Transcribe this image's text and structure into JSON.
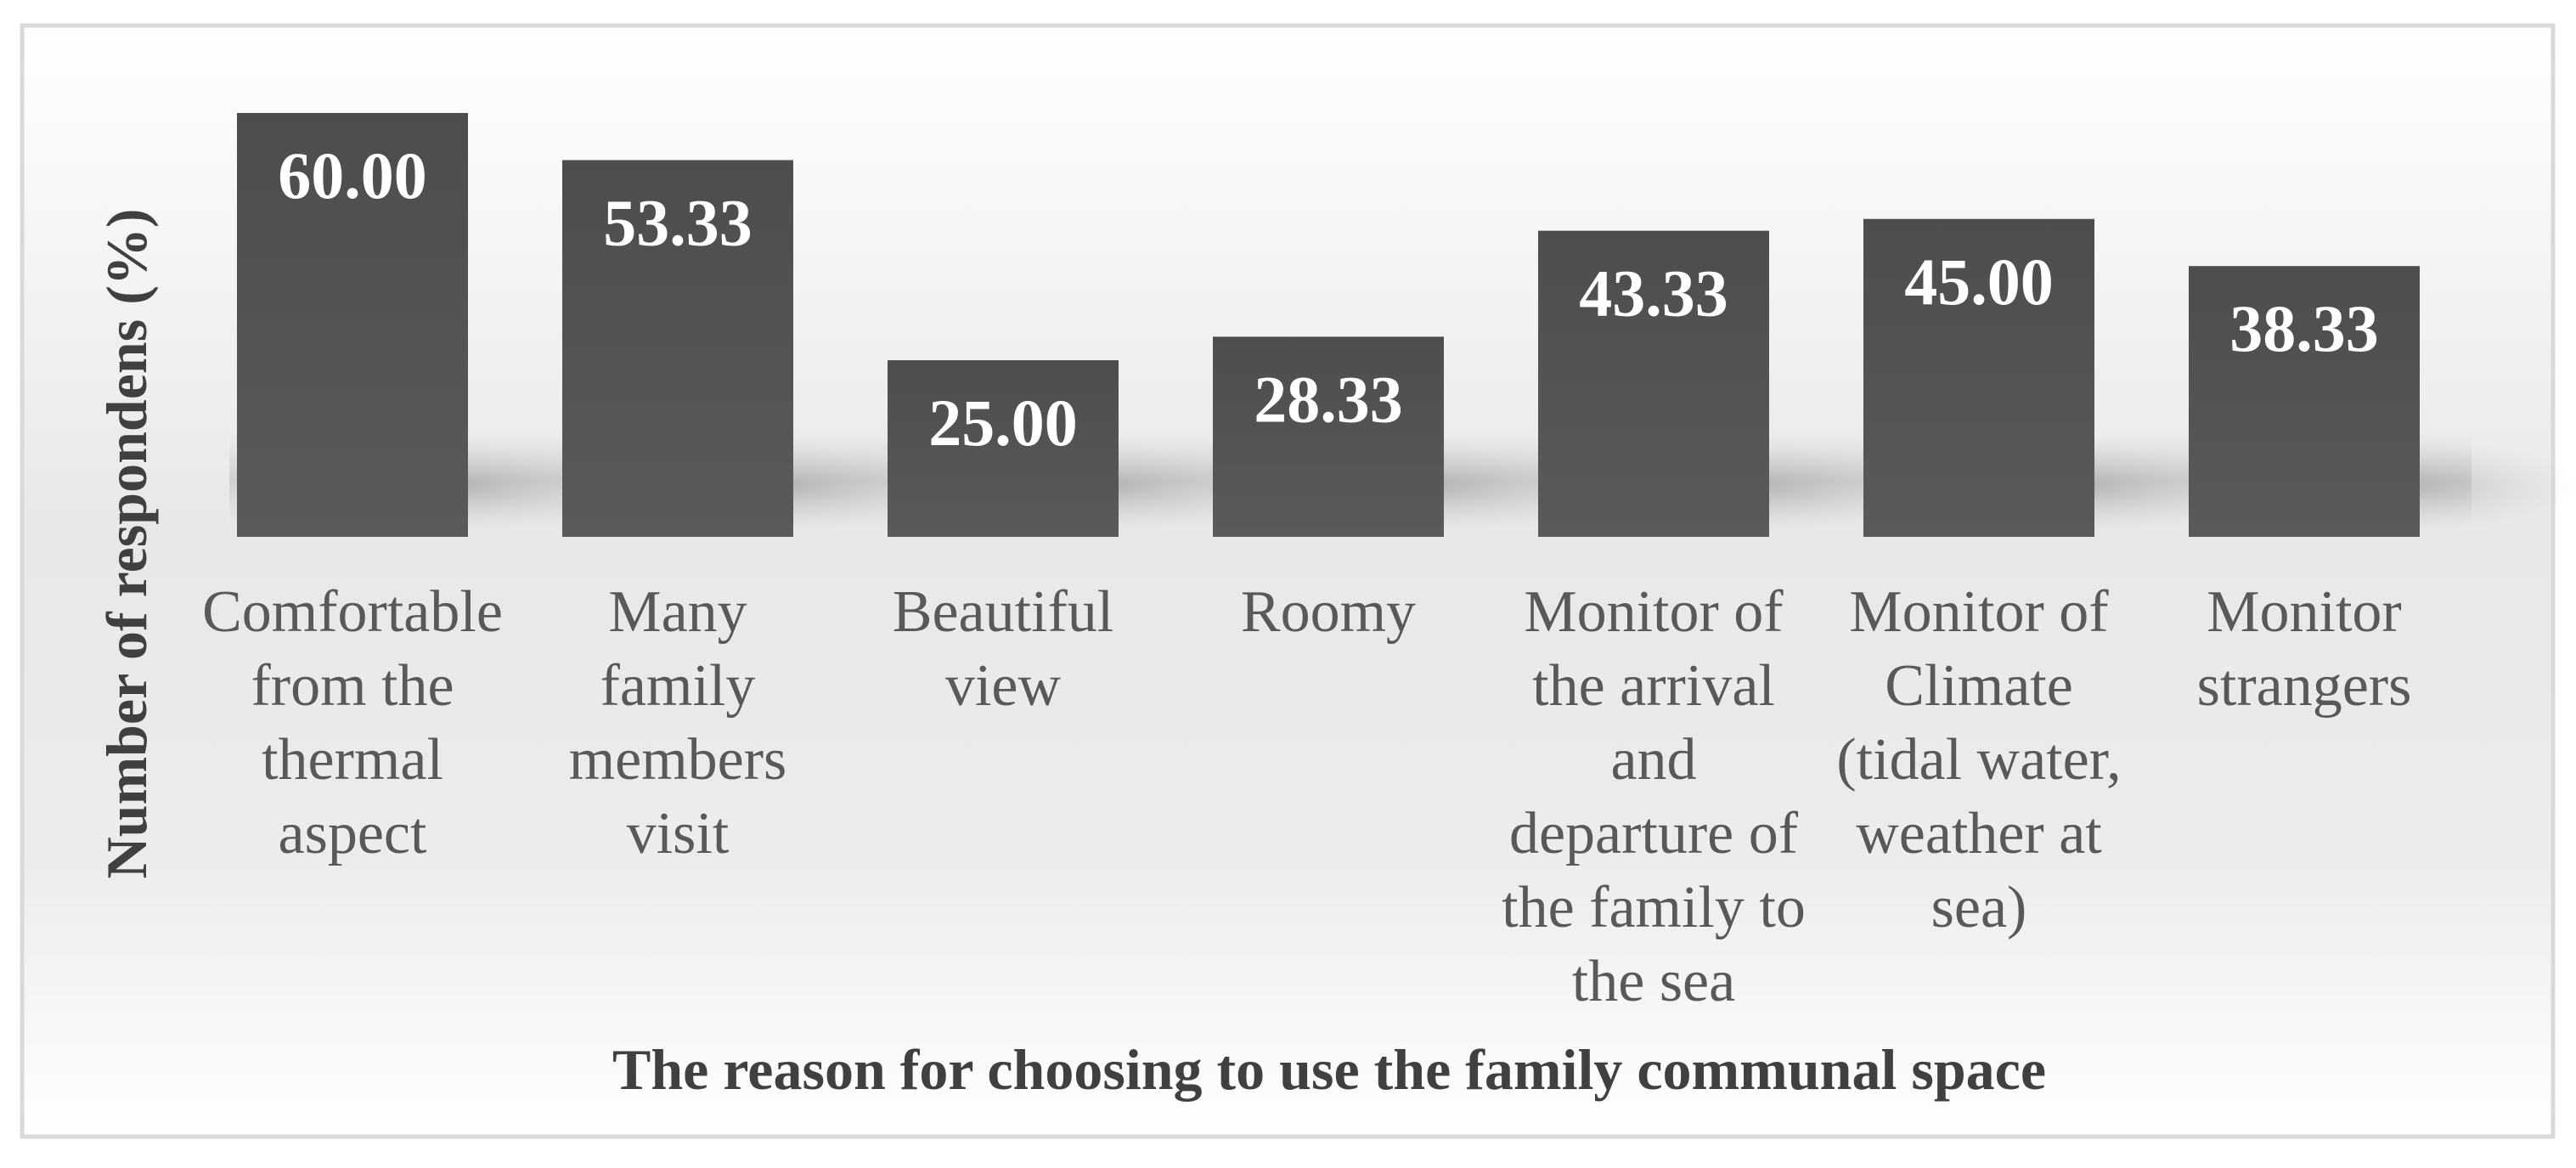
{
  "chart_data": {
    "type": "bar",
    "categories": [
      "Comfortable from the thermal aspect",
      "Many family members visit",
      "Beautiful view",
      "Roomy",
      "Monitor of the arrival and departure of the family to the sea",
      "Monitor of Climate (tidal water, weather at sea)",
      "Monitor strangers"
    ],
    "category_lines": [
      [
        "Comfortable",
        "from the",
        "thermal",
        "aspect"
      ],
      [
        "Many",
        "family",
        "members",
        "visit"
      ],
      [
        "Beautiful",
        "view"
      ],
      [
        "Roomy"
      ],
      [
        "Monitor of",
        "the arrival",
        "and",
        "departure of",
        "the family to",
        "the sea"
      ],
      [
        "Monitor of",
        "Climate",
        "(tidal water,",
        "weather at",
        "sea)"
      ],
      [
        "Monitor",
        "strangers"
      ]
    ],
    "values": [
      60.0,
      53.33,
      25.0,
      28.33,
      43.33,
      45.0,
      38.33
    ],
    "value_labels": [
      "60.00",
      "53.33",
      "25.00",
      "28.33",
      "43.33",
      "45.00",
      "38.33"
    ],
    "title": "",
    "xlabel": "The reason for choosing to use the family communal space",
    "ylabel": "Number of respondens (%)",
    "ylim": [
      0,
      60
    ],
    "grid": false,
    "legend": "none",
    "colors": {
      "bar": "#555555",
      "bar_value_text": "#ffffff",
      "tick_text": "#595959",
      "axis_title_text": "#404040",
      "border": "#d9d9d9",
      "background_top": "#ffffff",
      "background_mid": "#e4e4e4"
    }
  }
}
